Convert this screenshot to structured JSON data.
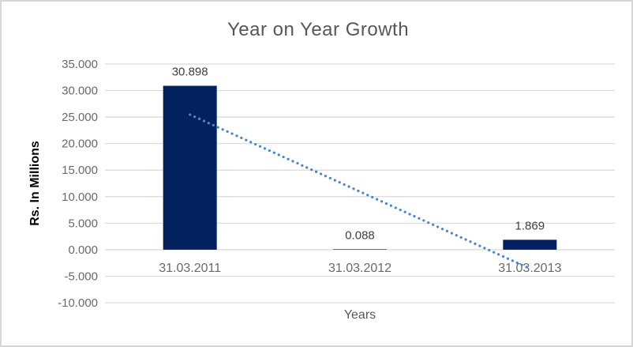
{
  "chart_data": {
    "type": "bar",
    "title": "Year on Year Growth",
    "xlabel": "Years",
    "ylabel": "Rs. In Millions",
    "categories": [
      "31.03.2011",
      "31.03.2012",
      "31.03.2013"
    ],
    "values": [
      30.898,
      0.088,
      1.869
    ],
    "data_labels": [
      "30.898",
      "0.088",
      "1.869"
    ],
    "ylim": [
      -10,
      35
    ],
    "ytick_step": 5,
    "ytick_labels": [
      "35.000",
      "30.000",
      "25.000",
      "20.000",
      "15.000",
      "10.000",
      "5.000",
      "0.000",
      "-5.000",
      "-10.000"
    ],
    "grid": true,
    "legend": "none",
    "trendline": {
      "type": "linear",
      "style": "dotted"
    },
    "colors": {
      "bar": "#02215E",
      "trendline": "#4A86CF",
      "gridline": "#D9D9D9",
      "title_text": "#575757",
      "axis_text": "#696969",
      "data_label_text": "#404040",
      "ylabel_text": "#000000",
      "frame_border": "#D6D6D6",
      "background": "#FFFFFF"
    }
  }
}
